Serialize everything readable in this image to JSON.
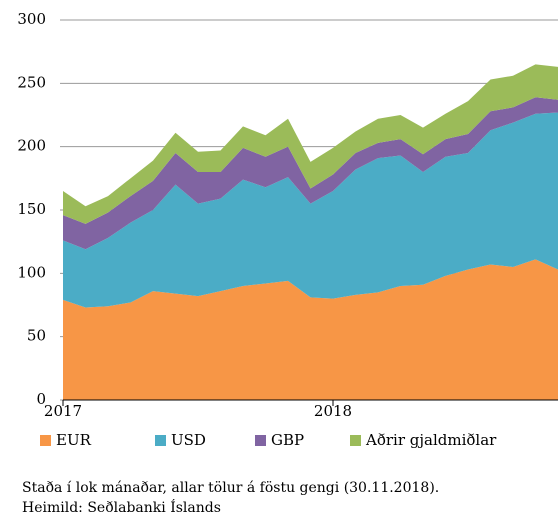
{
  "chart_data": {
    "type": "stacked_area",
    "categories": [
      "2017",
      null,
      null,
      null,
      null,
      null,
      null,
      null,
      null,
      null,
      null,
      null,
      "2018",
      null,
      null,
      null,
      null,
      null,
      null,
      null,
      null,
      null,
      null
    ],
    "series": [
      {
        "name": "EUR",
        "color": "#f79646",
        "values": [
          79,
          73,
          74,
          77,
          86,
          84,
          82,
          86,
          90,
          92,
          94,
          81,
          80,
          83,
          85,
          90,
          91,
          98,
          103,
          107,
          105,
          111,
          103
        ]
      },
      {
        "name": "USD",
        "color": "#4bacc6",
        "values": [
          47,
          46,
          54,
          63,
          64,
          86,
          73,
          73,
          84,
          76,
          82,
          74,
          85,
          99,
          106,
          103,
          89,
          94,
          92,
          106,
          114,
          115,
          124
        ]
      },
      {
        "name": "GBP",
        "color": "#8064a2",
        "values": [
          20,
          20,
          20,
          21,
          23,
          25,
          25,
          21,
          25,
          24,
          24,
          12,
          13,
          13,
          12,
          13,
          14,
          14,
          15,
          15,
          12,
          13,
          10
        ]
      },
      {
        "name": "Aðrir gjaldmiðlar",
        "color": "#9bbb59",
        "values": [
          19,
          14,
          13,
          14,
          16,
          16,
          16,
          17,
          17,
          17,
          22,
          21,
          21,
          17,
          19,
          19,
          21,
          20,
          26,
          25,
          25,
          26,
          26
        ]
      }
    ],
    "ylim": [
      0,
      300
    ],
    "yticks": [
      0,
      50,
      100,
      150,
      200,
      250,
      300
    ],
    "grid": true,
    "note": "Staða í lok mánaðar, allar tölur á föstu gengi (30.11.2018).",
    "source": "Heimild: Seðlabanki Íslands"
  }
}
